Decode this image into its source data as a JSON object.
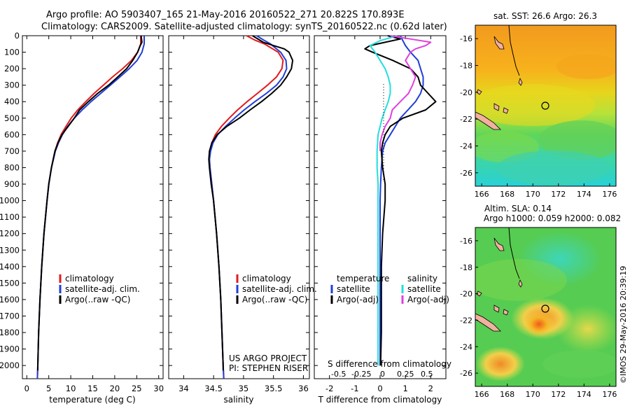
{
  "header": {
    "line1": "Argo profile: AO 5903407_165 21-May-2016 20160522_271 20.822S 170.893E",
    "line2": "Climatology: CARS2009. Satellite-adjusted climatology: synTS_20160522.nc (0.62d later)"
  },
  "colors": {
    "clim": "#e31a1c",
    "sat": "#1f3fd6",
    "argo": "#000000",
    "sat_s": "#22dede",
    "argo_s": "#e040e0"
  },
  "chart_data": [
    {
      "type": "line",
      "id": "temperature",
      "xlabel": "temperature (deg C)",
      "ylabel": "",
      "xlim": [
        -1,
        31
      ],
      "ylim": [
        2080,
        0
      ],
      "xticks": [
        0,
        5,
        10,
        15,
        20,
        25,
        30
      ],
      "xtick_labels": [
        "0",
        "5",
        "10",
        "15",
        "20",
        "25",
        "30"
      ],
      "yticks": [
        0,
        100,
        200,
        300,
        400,
        500,
        600,
        700,
        800,
        900,
        1000,
        1100,
        1200,
        1300,
        1400,
        1500,
        1600,
        1700,
        1800,
        1900,
        2000
      ],
      "ytick_labels": [
        "0",
        "100",
        "200",
        "300",
        "400",
        "500",
        "600",
        "700",
        "800",
        "900",
        "1000",
        "1100",
        "1200",
        "1300",
        "1400",
        "1500",
        "1600",
        "1700",
        "1800",
        "1900",
        "2000"
      ],
      "legend": [
        "climatology",
        "satellite-adj. clim.",
        "Argo(..raw -QC)"
      ],
      "series": [
        {
          "name": "climatology",
          "color_key": "clim",
          "depth": [
            0,
            50,
            100,
            150,
            200,
            250,
            300,
            350,
            400,
            450,
            500,
            550,
            600,
            650,
            700,
            800,
            900,
            1000,
            1200,
            1400,
            1600,
            1800,
            2000,
            2080
          ],
          "values": [
            25.9,
            25.9,
            25.2,
            23.8,
            21.8,
            19.5,
            17.4,
            15.3,
            13.4,
            11.6,
            10.1,
            8.9,
            7.8,
            7.0,
            6.4,
            5.6,
            5.0,
            4.6,
            3.9,
            3.4,
            3.0,
            2.7,
            2.5,
            2.4
          ]
        },
        {
          "name": "satellite-adj. clim.",
          "color_key": "sat",
          "depth": [
            0,
            50,
            100,
            150,
            200,
            250,
            300,
            350,
            400,
            450,
            500,
            550,
            600,
            650,
            700,
            800,
            900,
            1000,
            1200,
            1400,
            1600,
            1800,
            2000,
            2080
          ],
          "values": [
            26.7,
            26.7,
            26.2,
            25.1,
            23.3,
            21.2,
            19.0,
            16.8,
            14.6,
            12.6,
            10.8,
            9.3,
            8.1,
            7.2,
            6.5,
            5.6,
            5.0,
            4.6,
            3.9,
            3.4,
            3.0,
            2.7,
            2.5,
            2.4
          ]
        },
        {
          "name": "Argo(..raw -QC)",
          "color_key": "argo",
          "depth": [
            0,
            40,
            60,
            100,
            150,
            200,
            250,
            300,
            350,
            400,
            450,
            500,
            550,
            600,
            650,
            700,
            800,
            900,
            1000,
            1200,
            1400,
            1600,
            1800,
            2000,
            2030
          ],
          "values": [
            26.0,
            26.2,
            25.8,
            25.2,
            24.1,
            22.7,
            20.7,
            18.6,
            16.1,
            14.0,
            12.0,
            10.8,
            9.4,
            8.0,
            7.1,
            6.4,
            5.6,
            5.0,
            4.6,
            3.9,
            3.4,
            3.0,
            2.7,
            2.5,
            2.5
          ]
        }
      ]
    },
    {
      "type": "line",
      "id": "salinity",
      "xlabel": "salinity",
      "xlim": [
        33.75,
        36.1
      ],
      "ylim": [
        2080,
        0
      ],
      "xticks": [
        34,
        34.5,
        35,
        35.5,
        36
      ],
      "xtick_labels": [
        "34",
        "34.5",
        "35",
        "35.5",
        "36"
      ],
      "legend": [
        "climatology",
        "satellite-adj. clim.",
        "Argo(..raw -QC)"
      ],
      "credit": [
        "US ARGO PROJECT",
        "PI: STEPHEN RISER"
      ],
      "series": [
        {
          "name": "climatology",
          "color_key": "clim",
          "depth": [
            0,
            25,
            50,
            100,
            150,
            200,
            250,
            300,
            350,
            400,
            450,
            500,
            550,
            600,
            650,
            700,
            750,
            800,
            900,
            1000,
            1200,
            1400,
            1600,
            1800,
            2000,
            2080
          ],
          "values": [
            35.05,
            35.18,
            35.35,
            35.58,
            35.66,
            35.64,
            35.55,
            35.4,
            35.23,
            35.06,
            34.9,
            34.76,
            34.63,
            34.53,
            34.47,
            34.44,
            34.43,
            34.44,
            34.47,
            34.5,
            34.55,
            34.59,
            34.62,
            34.64,
            34.66,
            34.67
          ]
        },
        {
          "name": "satellite-adj. clim.",
          "color_key": "sat",
          "depth": [
            0,
            25,
            50,
            100,
            150,
            200,
            250,
            300,
            350,
            400,
            450,
            500,
            550,
            600,
            650,
            700,
            750,
            800,
            900,
            1000,
            1200,
            1400,
            1600,
            1800,
            2000,
            2080
          ],
          "values": [
            35.22,
            35.33,
            35.45,
            35.62,
            35.71,
            35.72,
            35.66,
            35.55,
            35.38,
            35.19,
            35.01,
            34.85,
            34.7,
            34.57,
            34.49,
            34.45,
            34.43,
            34.44,
            34.47,
            34.5,
            34.55,
            34.59,
            34.62,
            34.64,
            34.66,
            34.67
          ]
        },
        {
          "name": "Argo(..raw -QC)",
          "color_key": "argo",
          "depth": [
            0,
            40,
            60,
            80,
            100,
            150,
            200,
            250,
            300,
            350,
            400,
            450,
            500,
            550,
            600,
            650,
            700,
            750,
            800,
            900,
            1000,
            1200,
            1400,
            1600,
            1800,
            2000,
            2030
          ],
          "values": [
            35.15,
            35.33,
            35.5,
            35.68,
            35.76,
            35.82,
            35.8,
            35.72,
            35.62,
            35.47,
            35.3,
            35.11,
            34.93,
            34.72,
            34.56,
            34.47,
            34.43,
            34.42,
            34.43,
            34.46,
            34.5,
            34.55,
            34.59,
            34.62,
            34.64,
            34.66,
            34.66
          ]
        }
      ]
    },
    {
      "type": "line",
      "id": "difference",
      "xlabel": "T difference from climatology",
      "xlabel_top": "S difference from climatology",
      "xlim": [
        -2.6,
        2.6
      ],
      "ylim": [
        2080,
        0
      ],
      "xticks": [
        -2,
        -1,
        0,
        1,
        2
      ],
      "xtick_labels": [
        "-2",
        "-1",
        "0",
        "1",
        "2"
      ],
      "s_ticks": [
        "-0.5",
        "-0.25",
        "0",
        "0.25",
        "0.5"
      ],
      "legend_t_title": "temperature",
      "legend_s_title": "salinity",
      "legend_t": [
        "satellite",
        "Argo(-adj)"
      ],
      "legend_s": [
        "satellite",
        "Argo(-adj)"
      ],
      "series": [
        {
          "name": "T satellite",
          "color_key": "sat",
          "depth": [
            0,
            30,
            60,
            100,
            150,
            200,
            250,
            300,
            350,
            400,
            450,
            500,
            550,
            600,
            650,
            700,
            800,
            900,
            1000,
            1200,
            1400,
            1600,
            1800,
            2000
          ],
          "values": [
            0.8,
            0.9,
            1.0,
            1.2,
            1.5,
            1.6,
            1.7,
            1.7,
            1.6,
            1.4,
            1.1,
            0.8,
            0.6,
            0.4,
            0.2,
            0.1,
            0.05,
            0.02,
            0.0,
            0.0,
            0.0,
            0.0,
            0.0,
            0.0
          ]
        },
        {
          "name": "T Argo(-adj)",
          "color_key": "argo",
          "depth": [
            0,
            20,
            40,
            60,
            80,
            100,
            150,
            200,
            250,
            300,
            350,
            400,
            450,
            500,
            550,
            600,
            650,
            700,
            800,
            900,
            1000,
            1200,
            1400,
            1600,
            1800,
            2000
          ],
          "values": [
            0.3,
            0.8,
            0.2,
            -0.4,
            -0.6,
            -0.3,
            0.5,
            1.2,
            1.5,
            1.6,
            1.9,
            2.2,
            1.8,
            0.9,
            0.4,
            0.2,
            0.1,
            0.05,
            0.1,
            0.2,
            0.2,
            0.1,
            0.05,
            0.05,
            0.05,
            0.02
          ]
        },
        {
          "name": "S satellite",
          "color_key": "sat_s",
          "depth": [
            0,
            30,
            60,
            100,
            150,
            200,
            250,
            300,
            350,
            400,
            450,
            500,
            550,
            600,
            700,
            800,
            900,
            1000,
            1200,
            1400,
            1600,
            1800,
            2000
          ],
          "values": [
            0.17,
            0.0,
            -0.1,
            -0.05,
            0.0,
            0.05,
            0.08,
            0.1,
            0.1,
            0.08,
            0.05,
            0.02,
            0.0,
            -0.02,
            -0.03,
            -0.03,
            -0.02,
            -0.02,
            -0.02,
            -0.02,
            -0.02,
            -0.02,
            -0.02
          ]
        },
        {
          "name": "S Argo(-adj)",
          "color_key": "argo_s",
          "depth": [
            0,
            20,
            40,
            60,
            80,
            100,
            150,
            200,
            250,
            300,
            350,
            400,
            450,
            500,
            550,
            600,
            650,
            700
          ],
          "values": [
            0.1,
            0.3,
            0.5,
            0.45,
            0.35,
            0.3,
            0.25,
            0.3,
            0.35,
            0.32,
            0.28,
            0.2,
            0.12,
            0.1,
            0.05,
            0.02,
            0.0,
            0.0
          ]
        }
      ]
    },
    {
      "type": "heatmap",
      "id": "sst_map",
      "title": "sat. SST: 26.6 Argo: 26.3",
      "xlim": [
        165.5,
        176.5
      ],
      "ylim": [
        -27,
        -15
      ],
      "xtick_labels": [
        "166",
        "168",
        "170",
        "172",
        "174",
        "176"
      ],
      "ytick_labels": [
        "-16",
        "-18",
        "-20",
        "-22",
        "-24",
        "-26"
      ],
      "marker": {
        "lon": 170.893,
        "lat": -20.822
      }
    },
    {
      "type": "heatmap",
      "id": "sla_map",
      "title_lines": [
        "Altim. SLA: 0.14",
        "Argo h1000: 0.059 h2000: 0.082"
      ],
      "xlim": [
        165.5,
        176.5
      ],
      "ylim": [
        -27,
        -15
      ],
      "xtick_labels": [
        "166",
        "168",
        "170",
        "172",
        "174",
        "176"
      ],
      "ytick_labels": [
        "-16",
        "-18",
        "-20",
        "-22",
        "-24",
        "-26"
      ],
      "marker": {
        "lon": 170.893,
        "lat": -20.822
      }
    }
  ],
  "footer": {
    "stamp": "©IMOS 29-May-2016 20:39:19"
  }
}
